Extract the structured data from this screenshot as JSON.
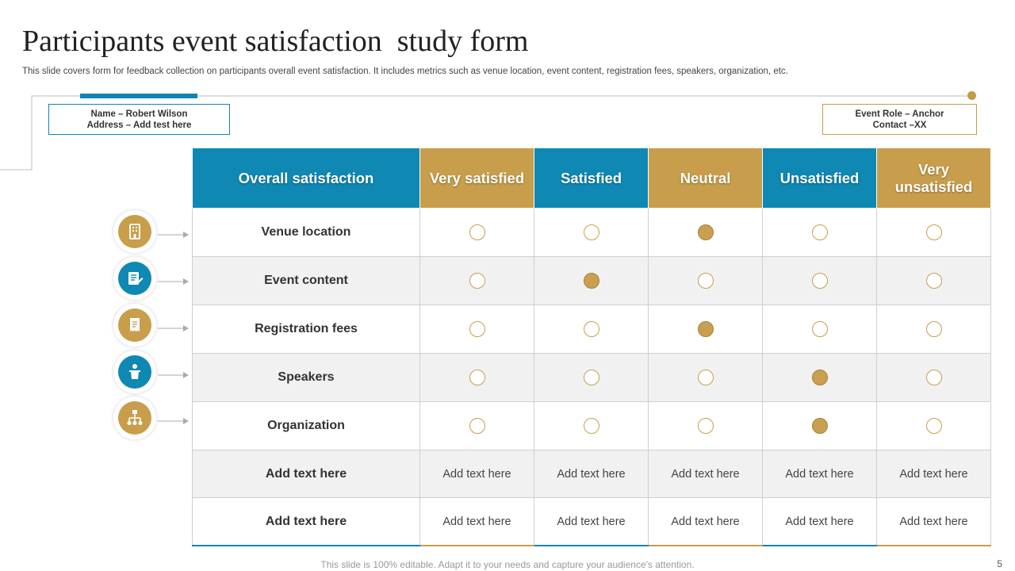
{
  "title": "Participants event satisfaction  study form",
  "subtitle": "This slide covers form for feedback collection on participants overall event satisfaction. It includes metrics such as venue location, event content, registration fees, speakers, organization, etc.",
  "info_left": {
    "line1": "Name – Robert Wilson",
    "line2": "Address – Add  test here"
  },
  "info_right": {
    "line1": "Event Role – Anchor",
    "line2": "Contact –XX"
  },
  "table": {
    "headers": [
      "Overall satisfaction",
      "Very satisfied",
      "Satisfied",
      "Neutral",
      "Unsatisfied",
      "Very unsatisfied"
    ],
    "header_colors": [
      "#0f88b3",
      "#c89e4c",
      "#0f88b3",
      "#c89e4c",
      "#0f88b3",
      "#c89e4c"
    ],
    "rating_rows": [
      {
        "label": "Venue location",
        "icon": "building-icon",
        "selected": "Neutral"
      },
      {
        "label": "Event content",
        "icon": "document-edit-icon",
        "selected": "Satisfied"
      },
      {
        "label": "Registration fees",
        "icon": "receipt-icon",
        "selected": "Neutral"
      },
      {
        "label": "Speakers",
        "icon": "speaker-podium-icon",
        "selected": "Unsatisfied"
      },
      {
        "label": "Organization",
        "icon": "org-chart-icon",
        "selected": "Unsatisfied"
      }
    ],
    "text_rows": [
      {
        "label": "Add text here",
        "cells": [
          "Add text here",
          "Add text here",
          "Add text here",
          "Add text here",
          "Add text here"
        ]
      },
      {
        "label": "Add text here",
        "cells": [
          "Add text here",
          "Add text here",
          "Add text here",
          "Add text here",
          "Add text here"
        ]
      }
    ]
  },
  "footer": "This slide is 100% editable. Adapt it to your needs and capture your audience's attention.",
  "page_number": "5",
  "colors": {
    "blue": "#0f88b3",
    "gold": "#c89e4c"
  }
}
